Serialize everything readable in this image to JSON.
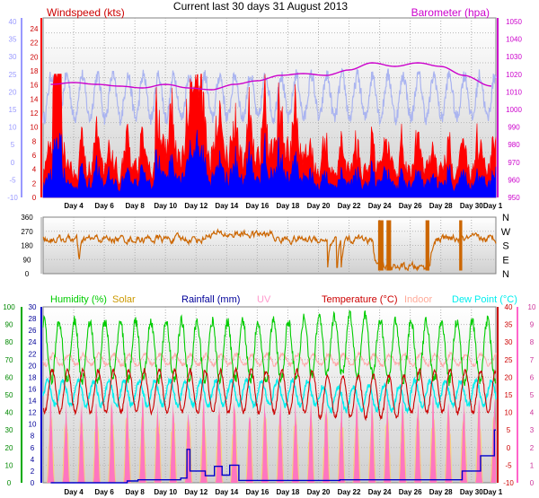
{
  "title": "Current last 30 days 31 August 2013",
  "colors": {
    "windspeed": "#ff0000",
    "wind_avg": "#0000ff",
    "barometer": "#cc00cc",
    "temp_outdoor_bg": "#aab4f0",
    "direction": "#cc6600",
    "humidity": "#00cc00",
    "solar": "#ffcc66",
    "rainfall": "#0000cc",
    "uv": "#ff66cc",
    "temperature": "#cc0000",
    "indoor": "#ffaaaa",
    "dewpoint": "#00eeee",
    "left_axis": "#9999ff",
    "hum_axis": "#00aa00"
  },
  "x_labels": [
    "Day 4",
    "Day 6",
    "Day 8",
    "Day 10",
    "Day 12",
    "Day 14",
    "Day 16",
    "Day 18",
    "Day 20",
    "Day 22",
    "Day 24",
    "Day 26",
    "Day 28",
    "Day 30",
    "Day 1"
  ],
  "chart_data": [
    {
      "type": "line",
      "name": "wind-barometer-panel",
      "series": [
        {
          "name": "Windspeed (kts)"
        },
        {
          "name": "Barometer (hpa)"
        }
      ],
      "ylabel_left": "Windspeed (kts)",
      "ylabel_right": "Barometer (hpa)",
      "y_left_inner_ticks": [
        "24",
        "22",
        "20",
        "18",
        "16",
        "14",
        "12",
        "10",
        "8",
        "6",
        "4",
        "2",
        "0"
      ],
      "y_left_outer_ticks": [
        "40",
        "35",
        "30",
        "25",
        "20",
        "15",
        "10",
        "5",
        "0",
        "-5",
        "-10"
      ],
      "y_right_ticks": [
        "1050",
        "1040",
        "1030",
        "1020",
        "1010",
        "1000",
        "990",
        "980",
        "970",
        "960",
        "950"
      ],
      "ylim_wind": [
        0,
        24
      ],
      "ylim_baro": [
        950,
        1050
      ],
      "barometer": {
        "x_days": [
          2.5,
          4,
          5.5,
          7,
          8.5,
          10,
          11.5,
          13,
          14.5,
          16,
          17.5,
          19,
          20.5,
          22,
          23.5,
          25,
          26.5,
          28,
          29.5,
          31.3
        ],
        "values": [
          1013,
          1014,
          1013,
          1012,
          1011,
          1013,
          1011,
          1010,
          1013,
          1015,
          1018,
          1019,
          1018,
          1021,
          1025,
          1023,
          1025,
          1023,
          1018,
          1012
        ]
      }
    },
    {
      "type": "scatter",
      "name": "wind-direction-panel",
      "y_ticks": [
        "360",
        "270",
        "180",
        "90",
        "0"
      ],
      "compass": [
        "N",
        "W",
        "S",
        "E",
        "N"
      ],
      "ylim": [
        0,
        360
      ]
    },
    {
      "type": "line",
      "name": "temperature-humidity-panel",
      "legend": [
        "Humidity (%)",
        "Solar",
        "Rainfall (mm)",
        "UV",
        "Temperature (°C)",
        "Indoor",
        "Dew Point (°C)"
      ],
      "y_humidity_ticks": [
        "100",
        "90",
        "80",
        "70",
        "60",
        "50",
        "40",
        "30",
        "20",
        "10",
        "0"
      ],
      "y_rain_ticks": [
        "30",
        "28",
        "26",
        "24",
        "22",
        "20",
        "18",
        "16",
        "14",
        "12",
        "10",
        "8",
        "6",
        "4",
        "2",
        "0"
      ],
      "y_temp_ticks": [
        "40",
        "35",
        "30",
        "25",
        "20",
        "15",
        "10",
        "5",
        "0",
        "-5",
        "-10"
      ],
      "y_uv_ticks": [
        "10",
        "9",
        "8",
        "7",
        "6",
        "5",
        "4",
        "3",
        "2",
        "1",
        "0"
      ],
      "ylim_humidity": [
        0,
        100
      ],
      "ylim_temp": [
        -10,
        40
      ],
      "ylim_rain": [
        0,
        30
      ],
      "rainfall": {
        "x_days": [
          2.5,
          7.5,
          8.2,
          11.0,
          11.4,
          11.6,
          12.6,
          13.2,
          13.7,
          14.2,
          14.8,
          21.4,
          29.4,
          30.6,
          31.5
        ],
        "values": [
          0,
          0.3,
          0.5,
          0.8,
          5.7,
          2.0,
          1.2,
          2.8,
          1.3,
          3.0,
          0.4,
          0.5,
          2.0,
          4.6,
          9.0
        ]
      }
    }
  ]
}
